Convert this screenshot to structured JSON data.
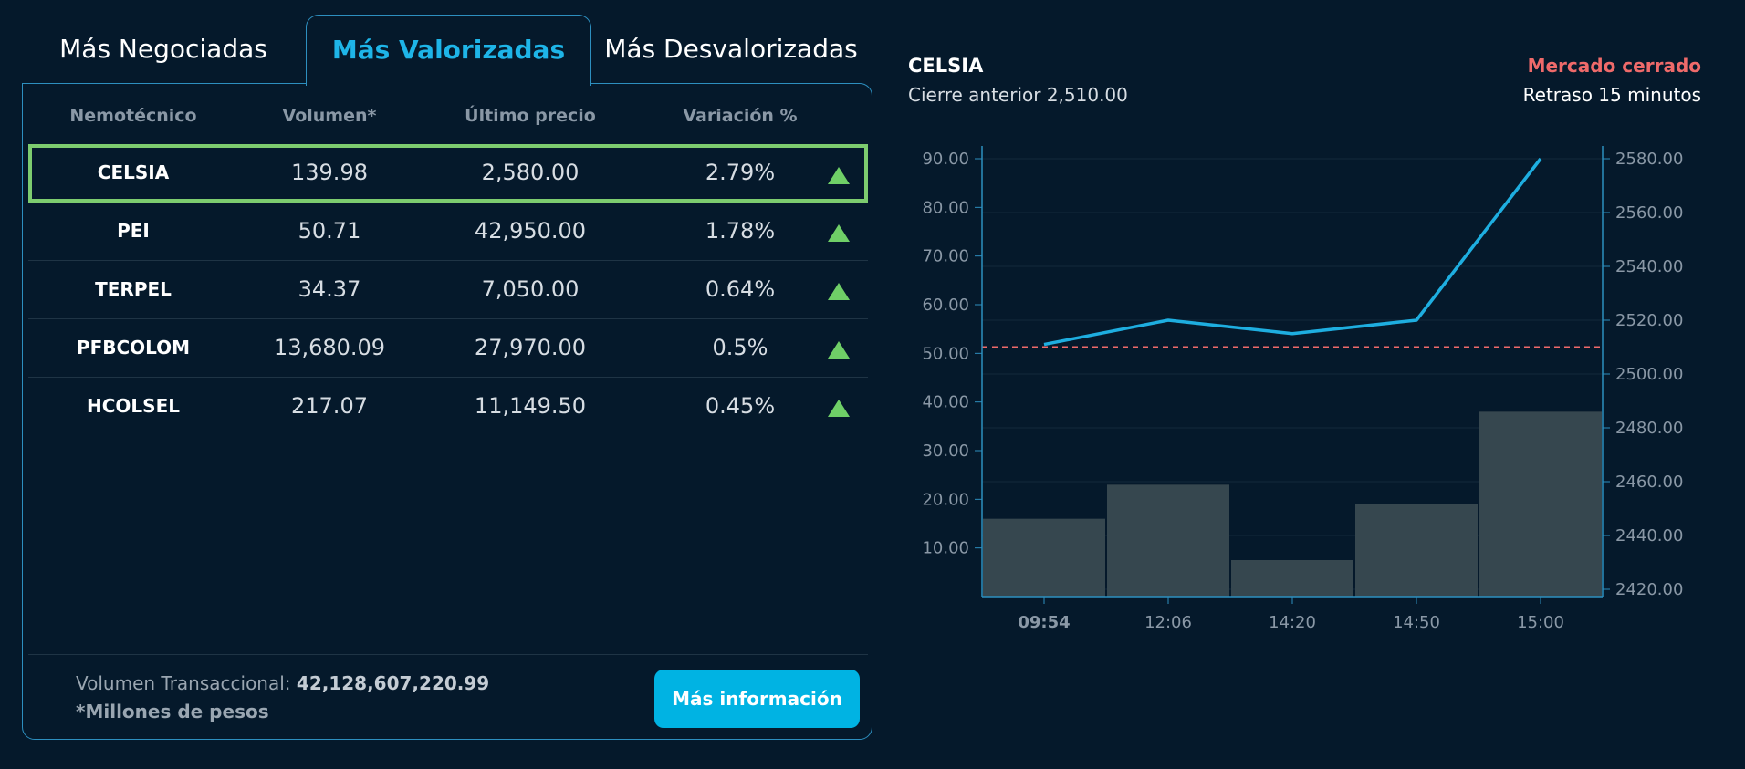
{
  "tabs": [
    {
      "label": "Más Negociadas",
      "active": false
    },
    {
      "label": "Más Valorizadas",
      "active": true
    },
    {
      "label": "Más Desvalorizadas",
      "active": false
    }
  ],
  "table": {
    "headers": [
      "Nemotécnico",
      "Volumen*",
      "Último precio",
      "Variación %"
    ],
    "rows": [
      {
        "symbol": "CELSIA",
        "volume": "139.98",
        "price": "2,580.00",
        "change": "2.79%",
        "trend": "up",
        "selected": true
      },
      {
        "symbol": "PEI",
        "volume": "50.71",
        "price": "42,950.00",
        "change": "1.78%",
        "trend": "up"
      },
      {
        "symbol": "TERPEL",
        "volume": "34.37",
        "price": "7,050.00",
        "change": "0.64%",
        "trend": "up"
      },
      {
        "symbol": "PFBCOLOM",
        "volume": "13,680.09",
        "price": "27,970.00",
        "change": "0.5%",
        "trend": "up"
      },
      {
        "symbol": "HCOLSEL",
        "volume": "217.07",
        "price": "11,149.50",
        "change": "0.45%",
        "trend": "up"
      }
    ]
  },
  "footer": {
    "volume_label": "Volumen Transaccional: ",
    "volume_value": "42,128,607,220.99",
    "note": "*Millones de pesos",
    "button_label": "Más información"
  },
  "chart_header": {
    "symbol": "CELSIA",
    "previous_close": "Cierre anterior 2,510.00",
    "market_status": "Mercado cerrado",
    "delay": "Retraso 15 minutos"
  },
  "colors": {
    "background": "#05192b",
    "accent": "#1eb5e8",
    "up": "#6fcf67",
    "market_closed": "#ef6a6a",
    "bars": "#36474f",
    "line": "#1eaee0"
  },
  "chart_data": {
    "type": "bar+line",
    "x": [
      "09:54",
      "12:06",
      "14:20",
      "14:50",
      "15:00"
    ],
    "volume_bars": [
      16,
      23,
      7.5,
      19,
      38
    ],
    "price_line": [
      2511,
      2520,
      2515,
      2520,
      2580
    ],
    "previous_close": 2510,
    "left_axis": {
      "range": [
        0,
        90
      ],
      "ticks": [
        "10.00",
        "20.00",
        "30.00",
        "40.00",
        "50.00",
        "60.00",
        "70.00",
        "80.00",
        "90.00"
      ]
    },
    "right_axis": {
      "range": [
        2420,
        2580
      ],
      "ticks": [
        "2420.00",
        "2440.00",
        "2460.00",
        "2480.00",
        "2500.00",
        "2520.00",
        "2540.00",
        "2560.00",
        "2580.00"
      ]
    },
    "grid": true
  }
}
